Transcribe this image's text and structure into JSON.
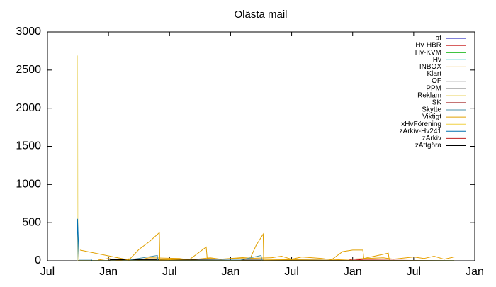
{
  "chart_data": {
    "type": "line",
    "title": "Olästa mail",
    "xlim": [
      0,
      42
    ],
    "xticks": [
      {
        "value": 0,
        "label": "Jul"
      },
      {
        "value": 6,
        "label": "Jan"
      },
      {
        "value": 12,
        "label": "Jul"
      },
      {
        "value": 18,
        "label": "Jan"
      },
      {
        "value": 24,
        "label": "Jul"
      },
      {
        "value": 30,
        "label": "Jan"
      },
      {
        "value": 36,
        "label": "Jul"
      },
      {
        "value": 42,
        "label": "Jan"
      }
    ],
    "ylim": [
      0,
      3000
    ],
    "yticks": [
      0,
      500,
      1000,
      1500,
      2000,
      2500,
      3000
    ],
    "legend": "top-right",
    "series": [
      {
        "name": "at",
        "color": "#0000b0",
        "x": [
          3,
          40
        ],
        "values": [
          0,
          0
        ]
      },
      {
        "name": "Hv-HBR",
        "color": "#c00000",
        "x": [
          3,
          29.5,
          30,
          31,
          40
        ],
        "values": [
          0,
          0,
          20,
          10,
          0
        ]
      },
      {
        "name": "Hv-KVM",
        "color": "#00b000",
        "x": [
          3,
          40
        ],
        "values": [
          0,
          0
        ]
      },
      {
        "name": "Hv",
        "color": "#00c0c0",
        "x": [
          3,
          40
        ],
        "values": [
          2,
          2
        ]
      },
      {
        "name": "INBOX",
        "color": "#e8a000",
        "x": [
          5,
          6,
          7,
          8,
          9,
          10,
          13,
          14,
          16,
          17,
          22,
          23,
          24,
          25,
          27,
          28,
          33,
          34,
          36,
          37,
          38,
          39,
          40
        ],
        "values": [
          10,
          30,
          5,
          25,
          10,
          40,
          30,
          10,
          40,
          20,
          40,
          60,
          20,
          50,
          30,
          10,
          40,
          20,
          50,
          30,
          60,
          20,
          50
        ]
      },
      {
        "name": "Klart",
        "color": "#c000c0",
        "x": [
          3,
          40
        ],
        "values": [
          0,
          0
        ]
      },
      {
        "name": "OF",
        "color": "#000000",
        "x": [
          3,
          6,
          6.2,
          40
        ],
        "values": [
          0,
          0,
          15,
          0
        ]
      },
      {
        "name": "PPM",
        "color": "#a0a0a0",
        "x": [
          3,
          40
        ],
        "values": [
          1,
          1
        ]
      },
      {
        "name": "Reklam",
        "color": "#f0e090",
        "x": [
          2.9,
          2.95,
          3.0,
          40
        ],
        "values": [
          0,
          2690,
          0,
          0
        ]
      },
      {
        "name": "SK",
        "color": "#a02020",
        "x": [
          3,
          40
        ],
        "values": [
          0,
          0
        ]
      },
      {
        "name": "Skytte",
        "color": "#4a90a8",
        "x": [
          8,
          10.8,
          10.85,
          19,
          21,
          21.1
        ],
        "values": [
          10,
          70,
          0,
          10,
          70,
          0
        ]
      },
      {
        "name": "Viktigt",
        "color": "#e0a000",
        "x": [
          3.2,
          8,
          9,
          10,
          11,
          11.05,
          14,
          15.6,
          15.7,
          17,
          20,
          20.5,
          21.2,
          21.25,
          28,
          29,
          30,
          31,
          31.1,
          33.5,
          33.6
        ],
        "values": [
          140,
          10,
          150,
          250,
          370,
          10,
          20,
          180,
          30,
          20,
          50,
          200,
          350,
          10,
          20,
          120,
          140,
          140,
          30,
          100,
          10
        ]
      },
      {
        "name": "xHvFörening",
        "color": "#f0d040",
        "x": [
          3,
          40
        ],
        "values": [
          3,
          3
        ]
      },
      {
        "name": "zArkiv-Hv241",
        "color": "#0070b0",
        "x": [
          2.9,
          2.95,
          3.1,
          4.3,
          4.35
        ],
        "values": [
          0,
          550,
          20,
          20,
          0
        ]
      },
      {
        "name": "zArkiv",
        "color": "#c02020",
        "x": [
          3,
          40
        ],
        "values": [
          0,
          0
        ]
      },
      {
        "name": "zAttgöra",
        "color": "#000000",
        "x": [
          3,
          40
        ],
        "values": [
          0,
          0
        ]
      }
    ]
  }
}
